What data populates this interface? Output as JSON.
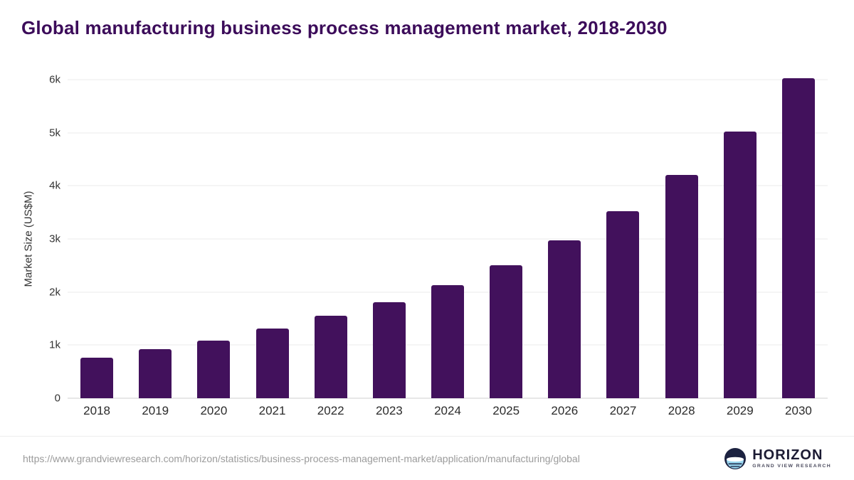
{
  "header": {
    "title": "Global manufacturing business process management market, 2018-2030"
  },
  "chart_data": {
    "type": "bar",
    "title": "Global manufacturing business process management market, 2018-2030",
    "categories": [
      "2018",
      "2019",
      "2020",
      "2021",
      "2022",
      "2023",
      "2024",
      "2025",
      "2026",
      "2027",
      "2028",
      "2029",
      "2030"
    ],
    "values": [
      760,
      920,
      1080,
      1310,
      1550,
      1810,
      2130,
      2510,
      2970,
      3520,
      4200,
      5020,
      6030
    ],
    "xlabel": "",
    "ylabel": "Market Size (US$M)",
    "ylim": [
      0,
      6000
    ],
    "yticks": [
      0,
      1000,
      2000,
      3000,
      4000,
      5000,
      6000
    ],
    "ytick_labels": [
      "0",
      "1k",
      "2k",
      "3k",
      "4k",
      "5k",
      "6k"
    ],
    "grid": true,
    "legend": "none",
    "colors": {
      "bar": "#42115c",
      "title": "#3c0c5a",
      "gridline": "#ebebeb",
      "axis_text": "#333333"
    }
  },
  "footer": {
    "source_url": "https://www.grandviewresearch.com/horizon/statistics/business-process-management-market/application/manufacturing/global",
    "logo": {
      "name": "HORIZON",
      "subtitle": "GRAND VIEW RESEARCH",
      "icon": "horizon-circle-icon"
    }
  }
}
